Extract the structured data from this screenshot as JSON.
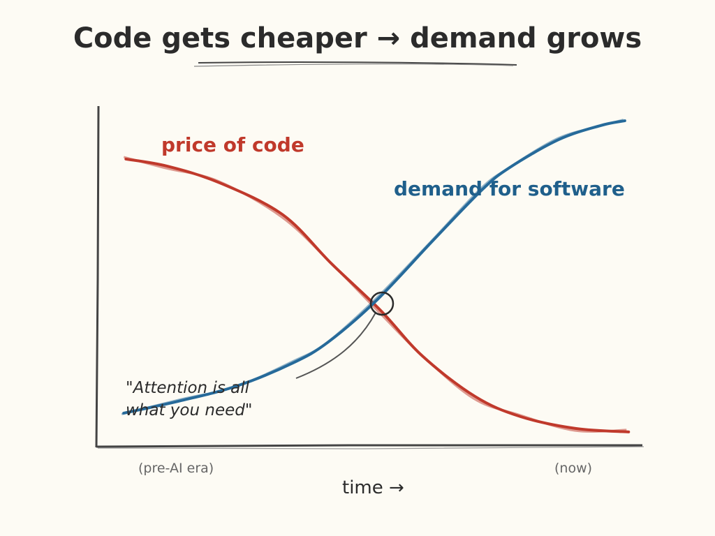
{
  "chart_data": {
    "type": "line",
    "title": "Code gets cheaper → demand grows",
    "xlabel": "time →",
    "ylabel": "",
    "xlim": [
      0,
      100
    ],
    "ylim": [
      0,
      100
    ],
    "grid": false,
    "x_annotations": {
      "start": "(pre-AI era)",
      "end": "(now)"
    },
    "series": [
      {
        "name": "price of code",
        "color": "#c0392b",
        "x": [
          5.2,
          12.9,
          22.6,
          34.2,
          43.2,
          52.3,
          60,
          69.7,
          78.1,
          88.4,
          98.1
        ],
        "y": [
          84.1,
          82,
          77.1,
          67.8,
          53.5,
          39.8,
          26.5,
          14.7,
          8.8,
          5.3,
          4.3
        ]
      },
      {
        "name": "demand for software",
        "color": "#266a9a",
        "x": [
          4.8,
          15.5,
          25.8,
          36.1,
          42.6,
          51.6,
          61.9,
          71,
          76.1,
          85.2,
          92.9,
          97.4
        ],
        "y": [
          9.8,
          13.5,
          17.8,
          24.5,
          30.6,
          42.9,
          60.2,
          75.1,
          81.6,
          89.8,
          93.9,
          95.3
        ]
      }
    ],
    "annotations": [
      {
        "text": "\"Attention is all what you need\"",
        "points_to": {
          "x": 52,
          "y": 42
        }
      }
    ]
  }
}
